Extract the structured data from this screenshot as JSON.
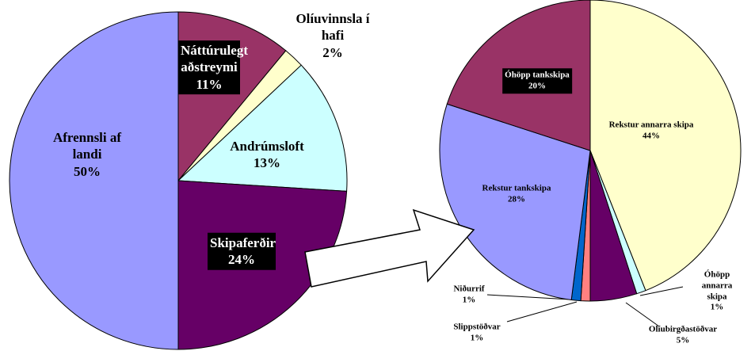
{
  "chart_data": [
    {
      "type": "pie",
      "categories": [
        "Náttúrulegt aðstreymi",
        "Olíuvinnsla í hafi",
        "Andrúmsloft",
        "Skipaferðir",
        "Afrennsli af landi"
      ],
      "values": [
        11,
        2,
        13,
        24,
        50
      ],
      "value_labels": [
        "11%",
        "2%",
        "13%",
        "24%",
        "50%"
      ],
      "colors": [
        "#993366",
        "#ffffcc",
        "#ccffff",
        "#660066",
        "#9999ff"
      ]
    },
    {
      "type": "pie",
      "categories": [
        "Rekstur annarra skipa",
        "Óhöpp annarra skipa",
        "Olíubirgðastöðvar",
        "Slippstöðvar",
        "Niðurrif",
        "Rekstur tankskipa",
        "Óhöpp tankskipa"
      ],
      "values": [
        44,
        1,
        5,
        1,
        1,
        28,
        20
      ],
      "value_labels": [
        "44%",
        "1%",
        "5%",
        "1%",
        "1%",
        "28%",
        "20%"
      ],
      "colors": [
        "#ffffcc",
        "#ccffff",
        "#660066",
        "#ff8080",
        "#0066cc",
        "#9999ff",
        "#993366"
      ]
    }
  ]
}
